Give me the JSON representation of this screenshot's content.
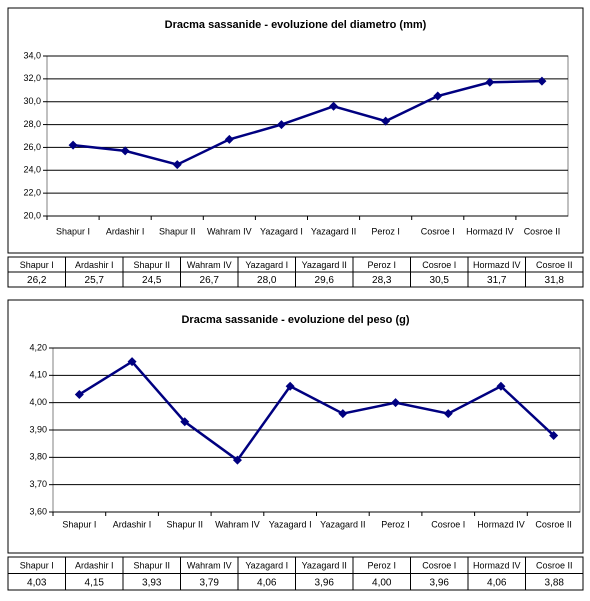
{
  "chart_data": [
    {
      "type": "line",
      "title": "Dracma sassanide - evoluzione del diametro (mm)",
      "categories": [
        "Shapur I",
        "Ardashir I",
        "Shapur II",
        "Wahram IV",
        "Yazagard I",
        "Yazagard II",
        "Peroz I",
        "Cosroe I",
        "Hormazd IV",
        "Cosroe II"
      ],
      "series": [
        {
          "color": "#000080",
          "values": [
            26.2,
            25.7,
            24.5,
            26.7,
            28.0,
            29.6,
            28.3,
            30.5,
            31.7,
            31.8
          ],
          "value_labels": [
            "26,2",
            "25,7",
            "24,5",
            "26,7",
            "28,0",
            "29,6",
            "28,3",
            "30,5",
            "31,7",
            "31,8"
          ]
        }
      ],
      "ylim": [
        20,
        34
      ],
      "yticks": [
        {
          "value": 20,
          "label": "20,0"
        },
        {
          "value": 22,
          "label": "22,0"
        },
        {
          "value": 24,
          "label": "24,0"
        },
        {
          "value": 26,
          "label": "26,0"
        },
        {
          "value": 28,
          "label": "28,0"
        },
        {
          "value": 30,
          "label": "30,0"
        },
        {
          "value": 32,
          "label": "32,0"
        },
        {
          "value": 34,
          "label": "34,0"
        }
      ],
      "grid": true,
      "data_table": true
    },
    {
      "type": "line",
      "title": "Dracma sassanide - evoluzione del peso (g)",
      "categories": [
        "Shapur I",
        "Ardashir I",
        "Shapur II",
        "Wahram IV",
        "Yazagard I",
        "Yazagard II",
        "Peroz I",
        "Cosroe I",
        "Hormazd IV",
        "Cosroe II"
      ],
      "series": [
        {
          "color": "#000080",
          "values": [
            4.03,
            4.15,
            3.93,
            3.79,
            4.06,
            3.96,
            4.0,
            3.96,
            4.06,
            3.88
          ],
          "value_labels": [
            "4,03",
            "4,15",
            "3,93",
            "3,79",
            "4,06",
            "3,96",
            "4,00",
            "3,96",
            "4,06",
            "3,88"
          ]
        }
      ],
      "ylim": [
        3.6,
        4.2
      ],
      "yticks": [
        {
          "value": 3.6,
          "label": "3,60"
        },
        {
          "value": 3.7,
          "label": "3,70"
        },
        {
          "value": 3.8,
          "label": "3,80"
        },
        {
          "value": 3.9,
          "label": "3,90"
        },
        {
          "value": 4.0,
          "label": "4,00"
        },
        {
          "value": 4.1,
          "label": "4,10"
        },
        {
          "value": 4.2,
          "label": "4,20"
        }
      ],
      "grid": true,
      "data_table": true
    }
  ]
}
